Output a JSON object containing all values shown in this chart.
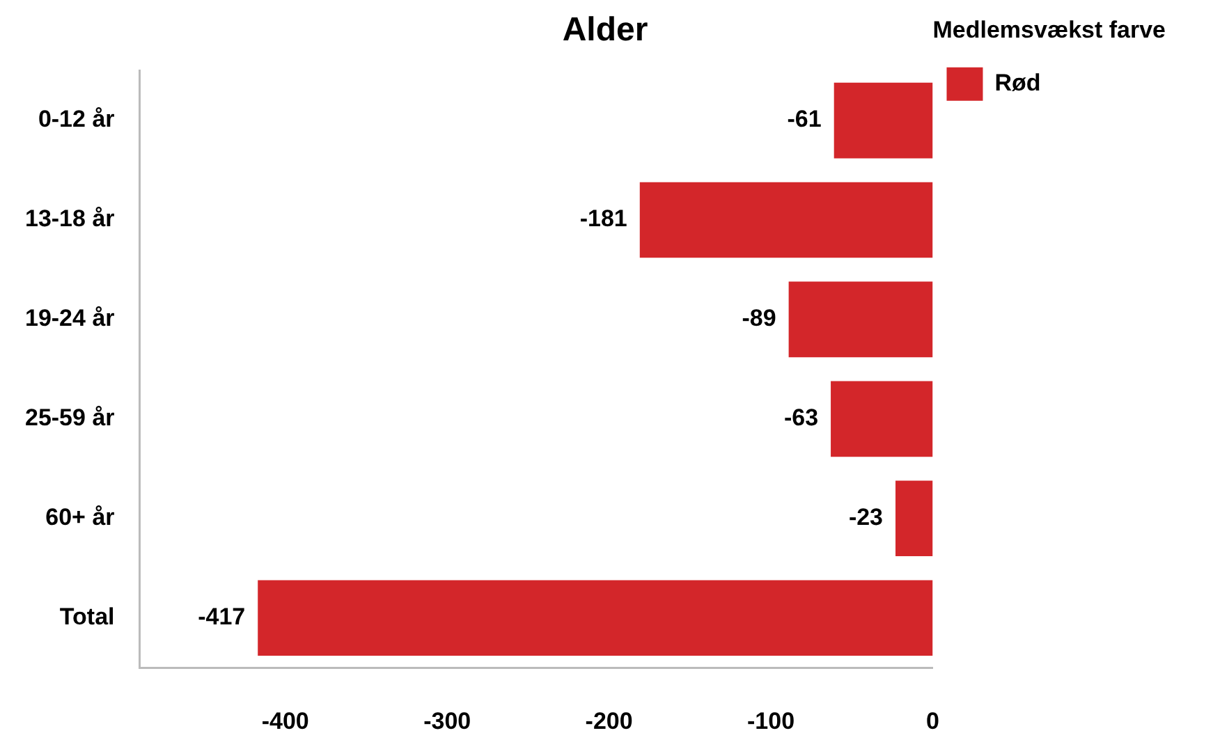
{
  "chart_data": {
    "type": "bar",
    "orientation": "horizontal",
    "title": "Alder",
    "legend_title": "Medlemsvækst farve",
    "categories": [
      "0-12 år",
      "13-18 år",
      "19-24 år",
      "25-59 år",
      "60+ år",
      "Total"
    ],
    "series": [
      {
        "name": "Rød",
        "color": "#d3262a",
        "values": [
          -61,
          -181,
          -89,
          -63,
          -23,
          -417
        ]
      }
    ],
    "xlim": [
      -490,
      0
    ],
    "xticks": [
      -400,
      -300,
      -200,
      -100,
      0
    ],
    "grid": false,
    "legend": "top right",
    "data_labels": true
  }
}
